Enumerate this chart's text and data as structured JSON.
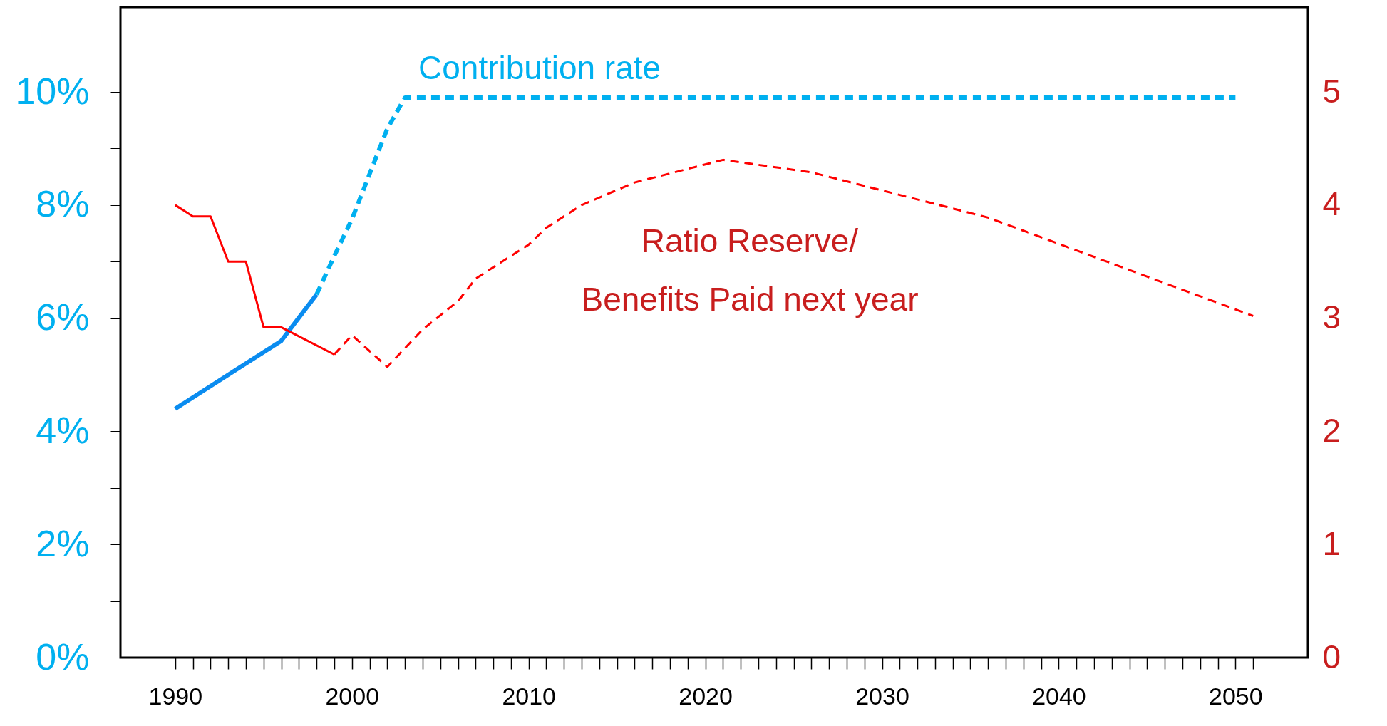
{
  "chart_data": {
    "type": "line",
    "xlim": [
      1986.9,
      2054.1
    ],
    "xticks": [
      1990,
      {
        "value": 1991,
        "label": null
      },
      {
        "value": 1992,
        "label": null
      },
      {
        "value": 1993,
        "label": null
      },
      {
        "value": 1994,
        "label": null
      },
      {
        "value": 1995,
        "label": null
      },
      {
        "value": 1996,
        "label": null
      },
      {
        "value": 1997,
        "label": null
      },
      {
        "value": 1998,
        "label": null
      },
      {
        "value": 1999,
        "label": null
      },
      2000,
      {
        "value": 2001,
        "label": null
      },
      {
        "value": 2002,
        "label": null
      },
      {
        "value": 2003,
        "label": null
      },
      {
        "value": 2004,
        "label": null
      },
      {
        "value": 2005,
        "label": null
      },
      {
        "value": 2006,
        "label": null
      },
      {
        "value": 2007,
        "label": null
      },
      {
        "value": 2008,
        "label": null
      },
      {
        "value": 2009,
        "label": null
      },
      2010,
      {
        "value": 2011,
        "label": null
      },
      {
        "value": 2012,
        "label": null
      },
      {
        "value": 2013,
        "label": null
      },
      {
        "value": 2014,
        "label": null
      },
      {
        "value": 2015,
        "label": null
      },
      {
        "value": 2016,
        "label": null
      },
      {
        "value": 2017,
        "label": null
      },
      {
        "value": 2018,
        "label": null
      },
      {
        "value": 2019,
        "label": null
      },
      2020,
      {
        "value": 2021,
        "label": null
      },
      {
        "value": 2022,
        "label": null
      },
      {
        "value": 2023,
        "label": null
      },
      {
        "value": 2024,
        "label": null
      },
      {
        "value": 2025,
        "label": null
      },
      {
        "value": 2026,
        "label": null
      },
      {
        "value": 2027,
        "label": null
      },
      {
        "value": 2028,
        "label": null
      },
      {
        "value": 2029,
        "label": null
      },
      2030,
      {
        "value": 2031,
        "label": null
      },
      {
        "value": 2032,
        "label": null
      },
      {
        "value": 2033,
        "label": null
      },
      {
        "value": 2034,
        "label": null
      },
      {
        "value": 2035,
        "label": null
      },
      {
        "value": 2036,
        "label": null
      },
      {
        "value": 2037,
        "label": null
      },
      {
        "value": 2038,
        "label": null
      },
      {
        "value": 2039,
        "label": null
      },
      2040,
      {
        "value": 2041,
        "label": null
      },
      {
        "value": 2042,
        "label": null
      },
      {
        "value": 2043,
        "label": null
      },
      {
        "value": 2044,
        "label": null
      },
      {
        "value": 2045,
        "label": null
      },
      {
        "value": 2046,
        "label": null
      },
      {
        "value": 2047,
        "label": null
      },
      {
        "value": 2048,
        "label": null
      },
      {
        "value": 2049,
        "label": null
      },
      2050,
      {
        "value": 2051,
        "label": null
      }
    ],
    "ylim": [
      0,
      11.5
    ],
    "yticks": [
      {
        "value": 0,
        "label": "0%"
      },
      {
        "value": 1,
        "label": null
      },
      {
        "value": 2,
        "label": "2%"
      },
      {
        "value": 3,
        "label": null
      },
      {
        "value": 4,
        "label": "4%"
      },
      {
        "value": 5,
        "label": null
      },
      {
        "value": 6,
        "label": "6%"
      },
      {
        "value": 7,
        "label": null
      },
      {
        "value": 8,
        "label": "8%"
      },
      {
        "value": 9,
        "label": null
      },
      {
        "value": 10,
        "label": "10%"
      },
      {
        "value": 11,
        "label": null
      }
    ],
    "y2lim": [
      0,
      5.75
    ],
    "y2ticks": [
      0,
      1,
      2,
      3,
      4,
      5
    ],
    "grid": false,
    "marker": "none",
    "series": [
      {
        "color": "#0a8cf0",
        "line_style": "solid",
        "x": [
          1990,
          1996,
          1998
        ],
        "values": [
          4.4,
          5.6,
          6.42
        ]
      },
      {
        "name": "Contribution rate",
        "color": "#00b0f0",
        "line_style": "dashed",
        "x": [
          1998,
          1999,
          2000,
          2001,
          2002,
          2003,
          2050
        ],
        "values": [
          6.42,
          7.1,
          7.75,
          8.55,
          9.35,
          9.9,
          9.9
        ]
      },
      {
        "color": "#ff0000",
        "line_style": "solid",
        "axis": "y2",
        "x": [
          1990,
          1991,
          1992,
          1993,
          1994,
          1995,
          1996,
          1999
        ],
        "values": [
          4.0,
          3.9,
          3.9,
          3.5,
          3.5,
          2.92,
          2.92,
          2.68
        ]
      },
      {
        "name": "Ratio Reserve/\nBenefits Paid next year",
        "color": "#ff0000",
        "line_style": "dashed",
        "axis": "y2",
        "x": [
          1999,
          2000,
          2002,
          2004,
          2006,
          2007,
          2010,
          2011,
          2013,
          2016,
          2021,
          2026,
          2036,
          2051
        ],
        "values": [
          2.68,
          2.85,
          2.57,
          2.9,
          3.15,
          3.35,
          3.65,
          3.8,
          4.0,
          4.2,
          4.4,
          4.29,
          3.89,
          3.02
        ]
      }
    ]
  }
}
